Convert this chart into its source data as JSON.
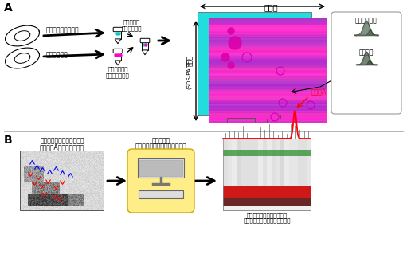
{
  "title_A": "A",
  "title_B": "B",
  "text_control_cell": "コントロールの細胞",
  "text_drug_cell": "薬剤処理細胞",
  "text_mix": "比較のため\n混合して解析",
  "text_label": "タンパク質を\n蛍光色素で標識",
  "text_iep": "等電点",
  "text_mw_1": "分子量",
  "text_mw_2": "(SDS-PAGE)",
  "text_control": "コントロール",
  "text_drug": "薬剤処理",
  "text_unknown_1": "標的分子のわからない薬剤",
  "text_unknown_2": "（化合物A）について解析",
  "text_compare_1": "解析結果を",
  "text_compare_2": "既知化合物の解析データと比較",
  "text_compound_a": "化合物A",
  "text_result_1": "多変量解析を用いて分類し",
  "text_result_2": "作用の似た化合物を選び出す。",
  "bg_color": "#ffffff"
}
